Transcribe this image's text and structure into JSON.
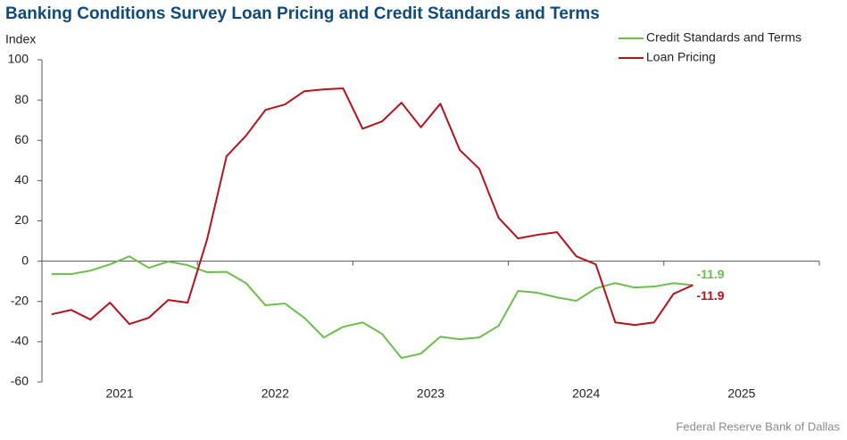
{
  "chart_data": {
    "type": "line",
    "title": "Banking Conditions Survey Loan Pricing and Credit Standards and Terms",
    "y_label": "Index",
    "source": "Federal Reserve Bank of Dallas",
    "x": [
      2021.0625,
      2021.1875,
      2021.3125,
      2021.4375,
      2021.5625,
      2021.6875,
      2021.8125,
      2021.9375,
      2022.0625,
      2022.1875,
      2022.3125,
      2022.4375,
      2022.5625,
      2022.6875,
      2022.8125,
      2022.9375,
      2023.0625,
      2023.1875,
      2023.3125,
      2023.4375,
      2023.5625,
      2023.6875,
      2023.8125,
      2023.9375,
      2024.0625,
      2024.1875,
      2024.3125,
      2024.4375,
      2024.5625,
      2024.6875,
      2024.8125,
      2024.9375,
      2025.0625,
      2025.1875
    ],
    "xlim": [
      2021,
      2026
    ],
    "xticks": [
      {
        "value": 2021.5,
        "label": "2021"
      },
      {
        "value": 2022.5,
        "label": "2022"
      },
      {
        "value": 2023.5,
        "label": "2023"
      },
      {
        "value": 2024.5,
        "label": "2024"
      },
      {
        "value": 2025.5,
        "label": "2025"
      }
    ],
    "ylim": [
      -60,
      100
    ],
    "yticks": [
      -60,
      -40,
      -20,
      0,
      20,
      40,
      60,
      80,
      100
    ],
    "legend": "upper right",
    "series": [
      {
        "name": "Credit Standards and Terms",
        "color": "#6abf4b",
        "values": [
          -6.4,
          -6.4,
          -4.7,
          -1.6,
          2.4,
          -3.3,
          -0.2,
          -2,
          -5.5,
          -5.3,
          -10.9,
          -21.9,
          -21,
          -28.1,
          -37.9,
          -32.6,
          -30.4,
          -36.1,
          -48.1,
          -45.9,
          -37.5,
          -38.8,
          -37.9,
          -32.1,
          -14.8,
          -15.7,
          -18,
          -19.7,
          -13.5,
          -10.9,
          -13.1,
          -12.6,
          -10.9,
          -11.9
        ]
      },
      {
        "name": "Loan Pricing",
        "color": "#b5121b",
        "values": [
          -26.4,
          -24.2,
          -29,
          -20.6,
          -31.2,
          -28.1,
          -19.3,
          -20.6,
          10.9,
          52.1,
          62.3,
          75.1,
          77.8,
          84.4,
          85.3,
          85.8,
          65.8,
          69.4,
          78.7,
          66.5,
          78.2,
          55.2,
          45.9,
          21.5,
          11.3,
          13.1,
          14.4,
          2.4,
          -1.6,
          -30.4,
          -31.7,
          -30.4,
          -16.2,
          -11.9
        ]
      }
    ]
  }
}
